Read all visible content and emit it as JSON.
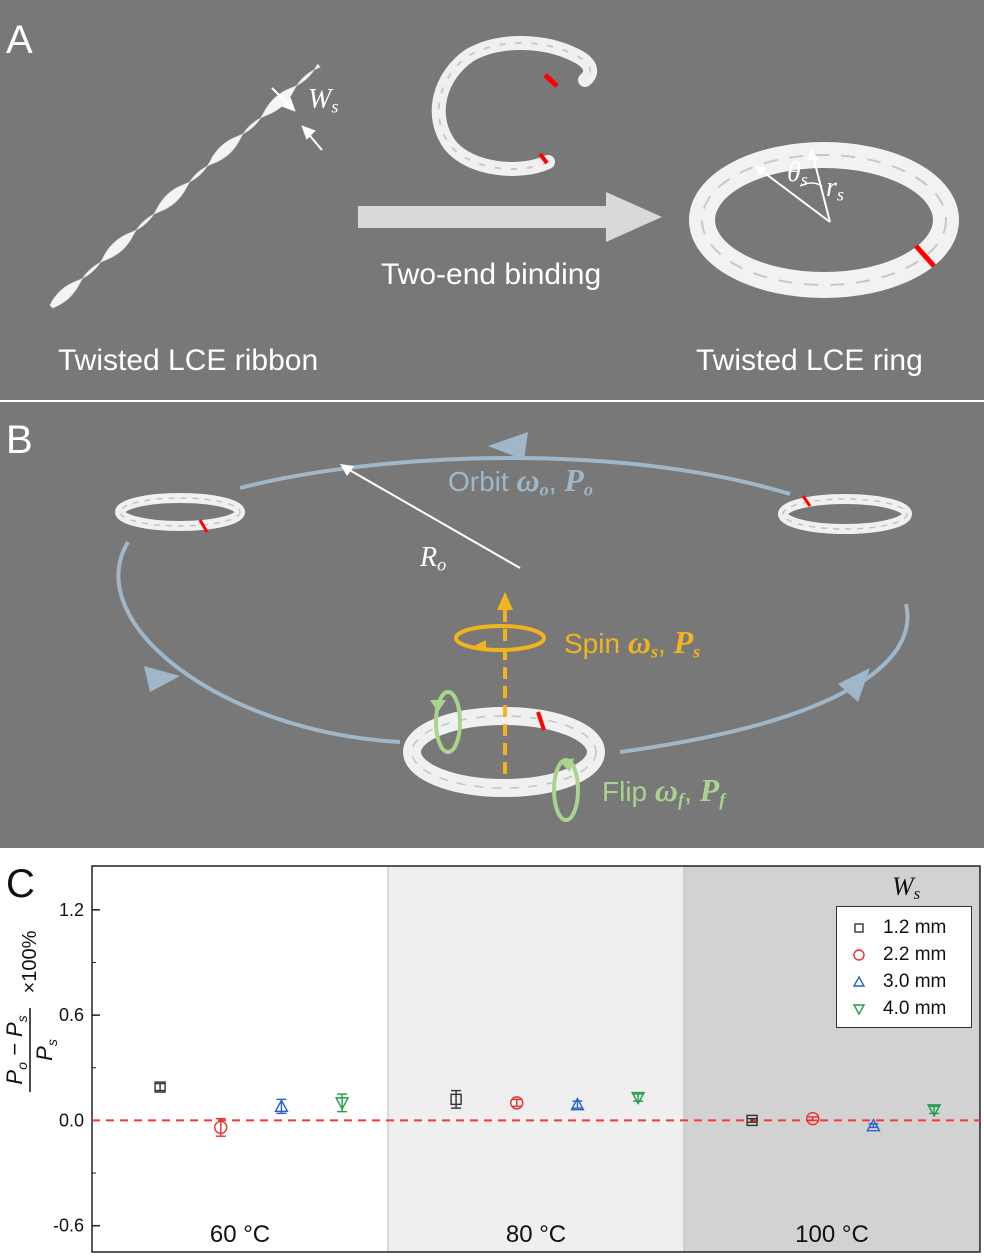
{
  "panel_a": {
    "letter": "A",
    "ribbon_label": "Twisted LCE ribbon",
    "arrow_label": "Two-end binding",
    "ring_label": "Twisted LCE ring",
    "width_symbol": "W",
    "width_sub": "s",
    "theta_symbol": "θ",
    "theta_sub": "s",
    "r_symbol": "r",
    "r_sub": "s"
  },
  "panel_b": {
    "letter": "B",
    "orbit_word": "Orbit",
    "orbit_omega": "ω",
    "orbit_omega_sub": "o",
    "orbit_p": "P",
    "orbit_p_sub": "o",
    "radius_symbol": "R",
    "radius_sub": "o",
    "spin_word": "Spin",
    "spin_omega": "ω",
    "spin_omega_sub": "s",
    "spin_p": "P",
    "spin_p_sub": "s",
    "flip_word": "Flip",
    "flip_omega": "ω",
    "flip_omega_sub": "f",
    "flip_p": "P",
    "flip_p_sub": "f",
    "comma": ",",
    "colors": {
      "orbit": "#9fb7c8",
      "spin": "#f0b41e",
      "flip": "#a9d38f",
      "panel_bg": "#787878",
      "marker": "#ff0000"
    }
  },
  "chart_data": {
    "type": "scatter",
    "panel_letter": "C",
    "ylabel": "(P_o − P_s) / P_s × 100%",
    "ylim": [
      -0.75,
      1.45
    ],
    "yticks": [
      -0.6,
      0.0,
      0.6,
      1.2
    ],
    "ytick_labels": [
      "-0.6",
      "0.0",
      "0.6",
      "1.2"
    ],
    "groups": [
      "60 °C",
      "80 °C",
      "100 °C"
    ],
    "group_backgrounds": [
      "#ffffff",
      "#efefef",
      "#d3d2d3"
    ],
    "reference_line": {
      "y": 0.0,
      "color": "#ff3333",
      "style": "dashed"
    },
    "legend_title": "W_s",
    "legend_placement": "top-right",
    "series": [
      {
        "name": "1.2 mm",
        "marker": "square",
        "color": "#333333",
        "values": [
          0.19,
          0.12,
          0.0
        ],
        "err_low": [
          0.02,
          0.05,
          0.01
        ],
        "err_high": [
          0.02,
          0.05,
          0.01
        ]
      },
      {
        "name": "2.2 mm",
        "marker": "circle",
        "color": "#e8302e",
        "values": [
          -0.04,
          0.1,
          0.01
        ],
        "err_low": [
          0.05,
          0.02,
          0.01
        ],
        "err_high": [
          0.05,
          0.02,
          0.01
        ]
      },
      {
        "name": "3.0 mm",
        "marker": "triangle-up",
        "color": "#2962c8",
        "values": [
          0.08,
          0.09,
          -0.03
        ],
        "err_low": [
          0.04,
          0.02,
          0.01
        ],
        "err_high": [
          0.04,
          0.02,
          0.01
        ]
      },
      {
        "name": "4.0 mm",
        "marker": "triangle-down",
        "color": "#1f9e48",
        "values": [
          0.1,
          0.13,
          0.06
        ],
        "err_low": [
          0.05,
          0.02,
          0.02
        ],
        "err_high": [
          0.05,
          0.02,
          0.02
        ]
      }
    ]
  }
}
